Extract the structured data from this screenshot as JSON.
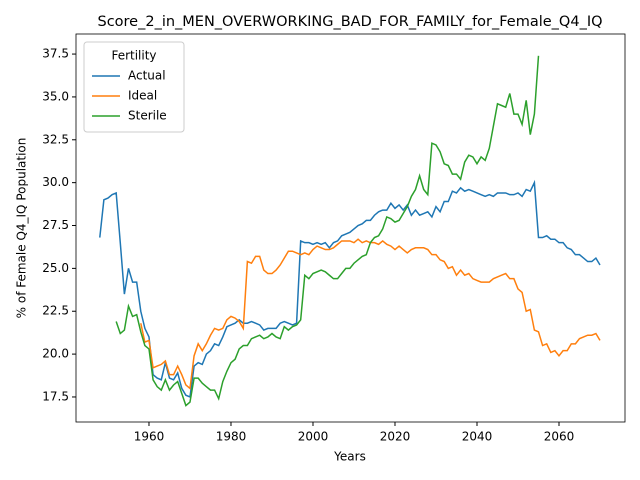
{
  "chart_data": {
    "type": "line",
    "title": "Score_2_in_MEN_OVERWORKING_BAD_FOR_FAMILY_for_Female_Q4_IQ",
    "xlabel": "Years",
    "ylabel": "% of Female Q4_IQ Population",
    "legend_title": "Fertility",
    "legend": "upper left",
    "grid": false,
    "xlim": [
      1942.2,
      2076.1
    ],
    "ylim": [
      16.04,
      38.67
    ],
    "xticks": [
      1960,
      1980,
      2000,
      2020,
      2040,
      2060
    ],
    "yticks": [
      17.5,
      {
        "value": 20,
        "label": "20.0"
      },
      22.5,
      {
        "value": 25,
        "label": "25.0"
      },
      27.5,
      {
        "value": 30,
        "label": "30.0"
      },
      32.5,
      {
        "value": 35,
        "label": "35.0"
      },
      37.5
    ],
    "x": [
      1948,
      1949,
      1950,
      1951,
      1952,
      1953,
      1954,
      1955,
      1956,
      1957,
      1958,
      1959,
      1960,
      1961,
      1962,
      1963,
      1964,
      1965,
      1966,
      1967,
      1968,
      1969,
      1970,
      1971,
      1972,
      1973,
      1974,
      1975,
      1976,
      1977,
      1978,
      1979,
      1980,
      1981,
      1982,
      1983,
      1984,
      1985,
      1986,
      1987,
      1988,
      1989,
      1990,
      1991,
      1992,
      1993,
      1994,
      1995,
      1996,
      1997,
      1998,
      1999,
      2000,
      2001,
      2002,
      2003,
      2004,
      2005,
      2006,
      2007,
      2008,
      2009,
      2010,
      2011,
      2012,
      2013,
      2014,
      2015,
      2016,
      2017,
      2018,
      2019,
      2020,
      2021,
      2022,
      2023,
      2024,
      2025,
      2026,
      2027,
      2028,
      2029,
      2030,
      2031,
      2032,
      2033,
      2034,
      2035,
      2036,
      2037,
      2038,
      2039,
      2040,
      2041,
      2042,
      2043,
      2044,
      2045,
      2046,
      2047,
      2048,
      2049,
      2050,
      2051,
      2052,
      2053,
      2054,
      2055,
      2056,
      2057,
      2058,
      2059,
      2060,
      2061,
      2062,
      2063,
      2064,
      2065,
      2066,
      2067,
      2068,
      2069,
      2070
    ],
    "series": [
      {
        "name": "Actual",
        "color": "#1f77b4",
        "values": [
          26.8,
          29.0,
          29.1,
          29.3,
          29.4,
          26.5,
          23.5,
          25.0,
          24.2,
          24.2,
          22.5,
          21.5,
          21.0,
          18.8,
          18.6,
          18.5,
          19.5,
          18.6,
          18.5,
          18.9,
          18.0,
          17.6,
          17.5,
          19.3,
          19.5,
          19.4,
          20.0,
          20.2,
          20.6,
          20.5,
          21.0,
          21.6,
          21.7,
          21.8,
          22.0,
          21.8,
          21.8,
          21.9,
          21.8,
          21.7,
          21.4,
          21.5,
          21.5,
          21.5,
          21.8,
          21.9,
          21.8,
          21.7,
          21.8,
          26.6,
          26.5,
          26.5,
          26.4,
          26.5,
          26.4,
          26.5,
          26.2,
          26.5,
          26.6,
          26.9,
          27.0,
          27.1,
          27.3,
          27.5,
          27.6,
          27.8,
          27.8,
          28.1,
          28.3,
          28.4,
          28.4,
          28.8,
          28.5,
          28.7,
          28.4,
          28.7,
          28.1,
          28.4,
          28.1,
          28.2,
          28.3,
          28.0,
          28.6,
          28.3,
          28.9,
          28.9,
          29.5,
          29.4,
          29.7,
          29.5,
          29.6,
          29.5,
          29.4,
          29.3,
          29.2,
          29.3,
          29.2,
          29.4,
          29.4,
          29.4,
          29.3,
          29.3,
          29.4,
          29.2,
          29.6,
          29.5,
          30.0,
          26.8,
          26.8,
          26.9,
          26.7,
          26.7,
          26.5,
          26.5,
          26.2,
          26.1,
          25.8,
          25.8,
          25.6,
          25.4,
          25.4,
          25.6,
          25.2
        ]
      },
      {
        "name": "Ideal",
        "color": "#ff7f0e",
        "values": [
          null,
          null,
          null,
          null,
          null,
          null,
          null,
          null,
          null,
          null,
          21.8,
          20.7,
          20.8,
          19.2,
          19.3,
          19.4,
          19.6,
          18.8,
          18.8,
          19.3,
          18.8,
          18.2,
          18.0,
          19.9,
          20.6,
          20.2,
          20.6,
          21.1,
          21.5,
          21.4,
          21.5,
          22.0,
          22.2,
          22.1,
          21.9,
          21.5,
          25.4,
          25.3,
          25.7,
          25.7,
          24.9,
          24.7,
          24.7,
          24.9,
          25.2,
          25.6,
          26.0,
          26.0,
          25.9,
          25.8,
          25.9,
          25.8,
          26.1,
          26.3,
          26.2,
          26.1,
          26.1,
          26.2,
          26.4,
          26.6,
          26.6,
          26.6,
          26.5,
          26.7,
          26.5,
          26.6,
          26.5,
          26.5,
          26.4,
          26.6,
          26.4,
          26.3,
          26.1,
          26.3,
          26.1,
          25.9,
          26.1,
          26.2,
          26.2,
          26.2,
          26.1,
          25.8,
          25.8,
          25.5,
          25.4,
          25.0,
          25.1,
          24.6,
          24.9,
          24.6,
          24.7,
          24.4,
          24.3,
          24.2,
          24.2,
          24.2,
          24.4,
          24.5,
          24.6,
          24.7,
          24.4,
          24.4,
          23.8,
          23.6,
          22.5,
          22.6,
          21.4,
          21.3,
          20.5,
          20.6,
          20.1,
          20.2,
          19.9,
          20.2,
          20.2,
          20.6,
          20.6,
          20.9,
          21.0,
          21.1,
          21.1,
          21.2,
          20.8
        ]
      },
      {
        "name": "Sterile",
        "color": "#2ca02c",
        "values": [
          null,
          null,
          null,
          null,
          21.9,
          21.2,
          21.4,
          22.8,
          22.2,
          22.3,
          21.3,
          20.5,
          20.3,
          18.5,
          18.1,
          17.9,
          18.5,
          17.9,
          18.2,
          18.4,
          17.7,
          17.0,
          17.2,
          18.6,
          18.6,
          18.3,
          18.1,
          17.9,
          17.9,
          17.4,
          18.4,
          19.0,
          19.5,
          19.7,
          20.3,
          20.5,
          20.5,
          20.9,
          21.0,
          21.1,
          20.9,
          21.0,
          21.2,
          21.0,
          20.9,
          21.6,
          21.4,
          21.6,
          21.7,
          22.0,
          24.6,
          24.4,
          24.7,
          24.8,
          24.9,
          24.8,
          24.6,
          24.4,
          24.4,
          24.7,
          25.0,
          25.0,
          25.3,
          25.5,
          25.7,
          25.8,
          26.5,
          26.8,
          26.9,
          27.3,
          28.0,
          27.9,
          27.7,
          27.8,
          28.2,
          28.6,
          29.2,
          29.6,
          30.4,
          29.6,
          29.3,
          32.3,
          32.2,
          31.8,
          31.1,
          31.0,
          30.5,
          30.5,
          30.2,
          31.2,
          31.6,
          31.5,
          31.1,
          31.5,
          31.3,
          32.0,
          33.3,
          34.6,
          34.5,
          34.4,
          35.2,
          34.0,
          34.0,
          33.4,
          34.8,
          32.8,
          34.0,
          37.4,
          null,
          null,
          null,
          null,
          null,
          null,
          null,
          null,
          null,
          null,
          null,
          null,
          null,
          null,
          null
        ]
      }
    ]
  }
}
